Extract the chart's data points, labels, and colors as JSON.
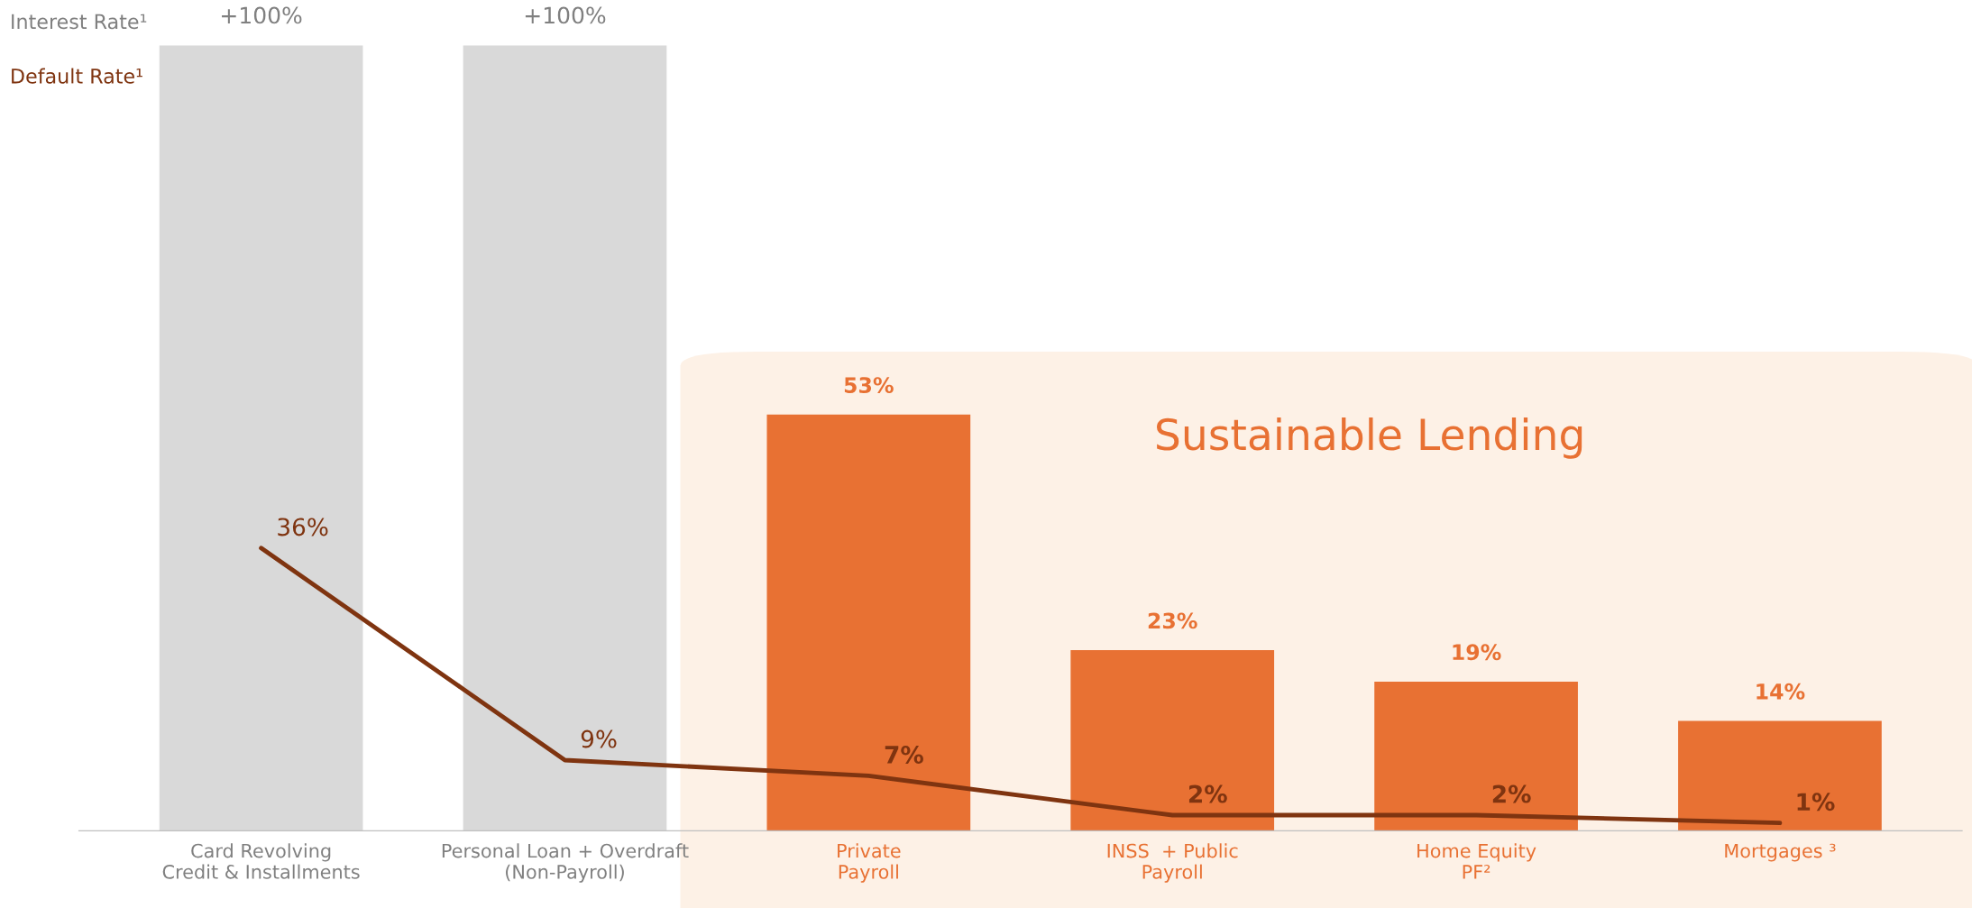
{
  "chart_data": {
    "type": "bar",
    "ylabel": "Interest Rate¹",
    "y2label": "Default Rate¹",
    "categories": [
      "Card Revolving\nCredit & Installments",
      "Personal Loan + Overdraft\n(Non-Payroll)",
      "Private\nPayroll",
      "INSS  + Public\nPayroll",
      "Home Equity\nPF²",
      "Mortgages ³"
    ],
    "series": [
      {
        "colors": [
          "#d9d9d9",
          "#d9d9d9",
          "#e87133",
          "#e87133",
          "#e87133",
          "#e87133"
        ],
        "values": [
          100,
          100,
          53,
          23,
          19,
          14
        ],
        "value_labels": [
          "+100%",
          "+100%",
          "53%",
          "23%",
          "19%",
          "14%"
        ]
      },
      {
        "type": "line",
        "color": "#7f3410",
        "values": [
          36,
          9,
          7,
          2,
          2,
          1
        ],
        "value_labels": [
          "36%",
          "9%",
          "7%",
          "2%",
          "2%",
          "1%"
        ]
      }
    ],
    "ylim": [
      0,
      100
    ],
    "annotations": [
      "Sustainable Lending"
    ],
    "tick_labels": "x",
    "grid": false,
    "legend": false,
    "marker": "none",
    "line_style": "solid"
  }
}
